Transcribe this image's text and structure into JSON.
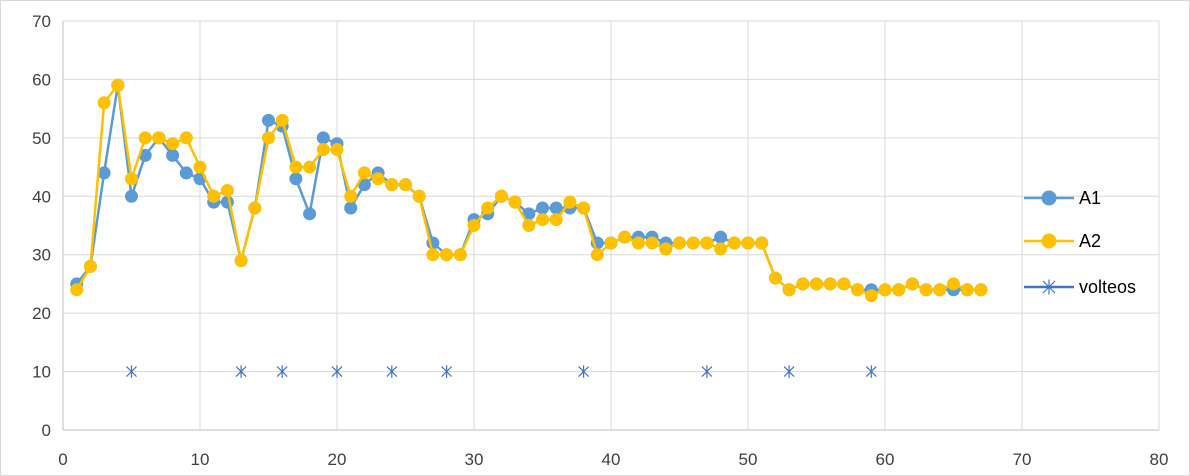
{
  "chart_data": {
    "type": "line",
    "title": "",
    "xlabel": "",
    "ylabel": "",
    "xlim": [
      0,
      80
    ],
    "ylim": [
      0,
      70
    ],
    "x_ticks": [
      0,
      10,
      20,
      30,
      40,
      50,
      60,
      70,
      80
    ],
    "y_ticks": [
      0,
      10,
      20,
      30,
      40,
      50,
      60,
      70
    ],
    "grid": true,
    "legend_position": "right",
    "series": [
      {
        "name": "A1",
        "color": "#5b9bd5",
        "marker": "circle",
        "x": [
          1,
          2,
          3,
          4,
          5,
          6,
          7,
          8,
          9,
          10,
          11,
          12,
          13,
          14,
          15,
          16,
          17,
          18,
          19,
          20,
          21,
          22,
          23,
          24,
          25,
          26,
          27,
          28,
          29,
          30,
          31,
          32,
          33,
          34,
          35,
          36,
          37,
          38,
          39,
          40,
          41,
          42,
          43,
          44,
          45,
          46,
          47,
          48,
          49,
          50,
          51,
          52,
          53,
          54,
          55,
          56,
          57,
          58,
          59,
          60,
          61,
          62,
          63,
          64,
          65,
          66,
          67
        ],
        "y": [
          25,
          28,
          44,
          59,
          40,
          47,
          50,
          47,
          44,
          43,
          39,
          39,
          29,
          38,
          53,
          52,
          43,
          37,
          50,
          49,
          38,
          42,
          44,
          42,
          42,
          40,
          32,
          30,
          30,
          36,
          37,
          40,
          39,
          37,
          38,
          38,
          38,
          38,
          32,
          32,
          33,
          33,
          33,
          32,
          32,
          32,
          32,
          33,
          32,
          32,
          32,
          26,
          24,
          25,
          25,
          25,
          25,
          24,
          24,
          24,
          24,
          25,
          24,
          24,
          24,
          24,
          24
        ]
      },
      {
        "name": "A2",
        "color": "#ffc000",
        "marker": "circle",
        "x": [
          1,
          2,
          3,
          4,
          5,
          6,
          7,
          8,
          9,
          10,
          11,
          12,
          13,
          14,
          15,
          16,
          17,
          18,
          19,
          20,
          21,
          22,
          23,
          24,
          25,
          26,
          27,
          28,
          29,
          30,
          31,
          32,
          33,
          34,
          35,
          36,
          37,
          38,
          39,
          40,
          41,
          42,
          43,
          44,
          45,
          46,
          47,
          48,
          49,
          50,
          51,
          52,
          53,
          54,
          55,
          56,
          57,
          58,
          59,
          60,
          61,
          62,
          63,
          64,
          65,
          66,
          67
        ],
        "y": [
          24,
          28,
          56,
          59,
          43,
          50,
          50,
          49,
          50,
          45,
          40,
          41,
          29,
          38,
          50,
          53,
          45,
          45,
          48,
          48,
          40,
          44,
          43,
          42,
          42,
          40,
          30,
          30,
          30,
          35,
          38,
          40,
          39,
          35,
          36,
          36,
          39,
          38,
          30,
          32,
          33,
          32,
          32,
          31,
          32,
          32,
          32,
          31,
          32,
          32,
          32,
          26,
          24,
          25,
          25,
          25,
          25,
          24,
          23,
          24,
          24,
          25,
          24,
          24,
          25,
          24,
          24
        ]
      },
      {
        "name": "volteos",
        "color": "#4472c4",
        "marker": "asterisk",
        "line": false,
        "x": [
          5,
          13,
          16,
          20,
          24,
          28,
          38,
          47,
          53,
          59
        ],
        "y": [
          10,
          10,
          10,
          10,
          10,
          10,
          10,
          10,
          10,
          10
        ]
      }
    ]
  }
}
